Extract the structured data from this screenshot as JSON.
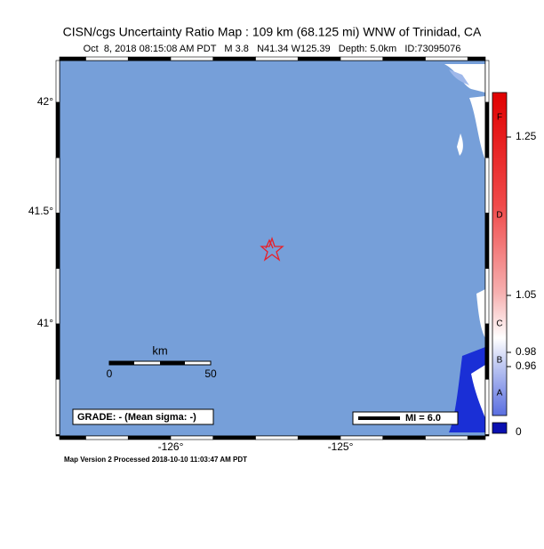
{
  "header": {
    "title": "CISN/cgs Uncertainty Ratio Map : 109 km (68.125 mi) WNW of Trinidad, CA",
    "subtitle": "Oct  8, 2018 08:15:08 AM PDT   M 3.8   N41.34 W125.39   Depth: 5.0km   ID:73095076"
  },
  "map": {
    "lat_labels": [
      "42°",
      "41.5°",
      "41°"
    ],
    "lon_labels": [
      "-126°",
      "-125°"
    ],
    "scale_bar": {
      "unit": "km",
      "labels": [
        "0",
        "50"
      ]
    },
    "grade": "GRADE: - (Mean sigma: -)",
    "legend": "MI = 6.0"
  },
  "colorbar": {
    "grades": [
      "F",
      "D",
      "C",
      "B",
      "A"
    ],
    "values": [
      "1.25",
      "1.05",
      "0.98",
      "0.96"
    ],
    "zero": "0"
  },
  "footer": "Map Version 2 Processed 2018-10-10 11:03:47 AM PDT"
}
